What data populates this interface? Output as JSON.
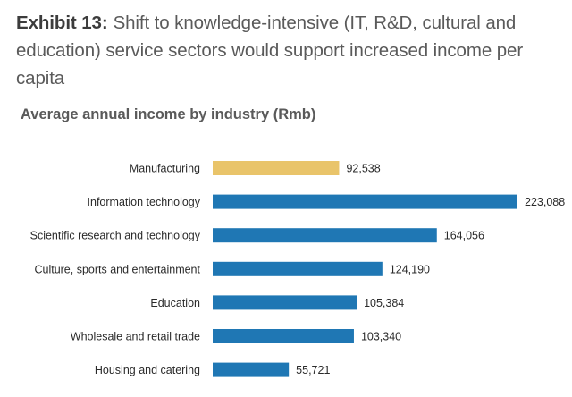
{
  "exhibit": {
    "label": "Exhibit 13:",
    "text": "Shift to knowledge-intensive (IT, R&D, cultural and education) service sectors would support increased income per capita"
  },
  "chart_data": {
    "type": "bar",
    "orientation": "horizontal",
    "title": "Average annual income by industry (Rmb)",
    "categories": [
      "Manufacturing",
      "Information technology",
      "Scientific research and technology",
      "Culture, sports and entertainment",
      "Education",
      "Wholesale and retail trade",
      "Housing and catering"
    ],
    "values": [
      92538,
      223088,
      164056,
      124190,
      105384,
      103340,
      55721
    ],
    "value_labels": [
      "92,538",
      "223,088",
      "164,056",
      "124,190",
      "105,384",
      "103,340",
      "55,721"
    ],
    "colors": [
      "#E9C46A",
      "#1F77B4",
      "#1F77B4",
      "#1F77B4",
      "#1F77B4",
      "#1F77B4",
      "#1F77B4"
    ],
    "xlim": [
      0,
      223088
    ],
    "grid": false,
    "legend": "none"
  }
}
